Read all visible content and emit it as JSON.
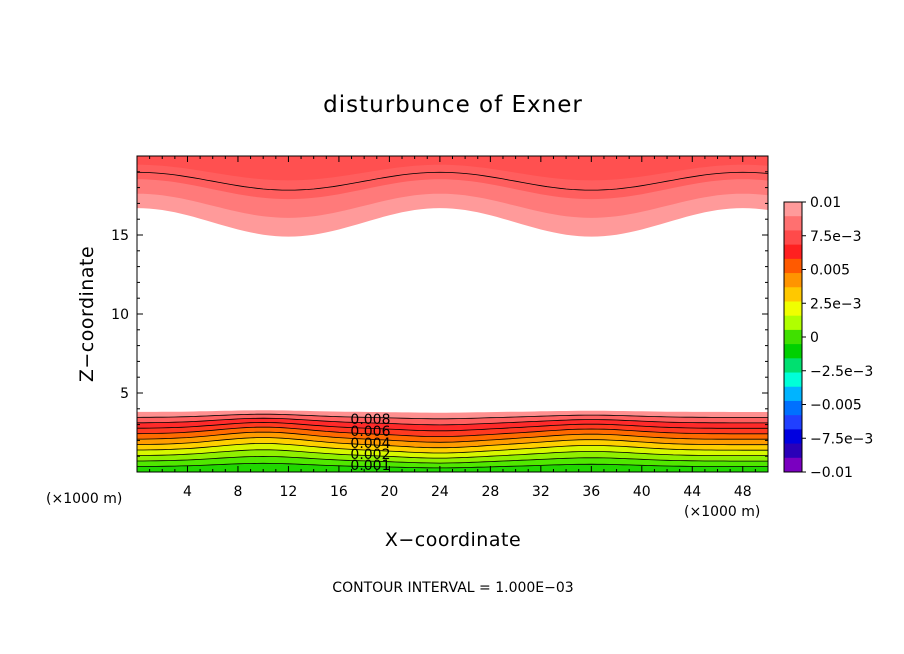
{
  "chart_data": {
    "type": "contour",
    "title": "disturbunce of Exner",
    "xlabel": "X−coordinate",
    "ylabel": "Z−coordinate",
    "x_unit_label": "(×1000 m)",
    "y_unit_label": "(×1000 m)",
    "xlim": [
      0,
      50
    ],
    "ylim": [
      0,
      20
    ],
    "x_ticks": [
      4,
      8,
      12,
      16,
      20,
      24,
      28,
      32,
      36,
      40,
      44,
      48
    ],
    "y_ticks": [
      5,
      10,
      15
    ],
    "contour_interval_text": "CONTOUR INTERVAL = 1.000E−03",
    "colorbar": {
      "tick_labels": [
        "0.01",
        "7.5e−3",
        "0.005",
        "2.5e−3",
        "0",
        "−2.5e−3",
        "−0.005",
        "−7.5e−3",
        "−0.01"
      ],
      "levels": [
        0.01,
        0.0075,
        0.005,
        0.0025,
        0,
        -0.0025,
        -0.005,
        -0.0075,
        -0.01
      ],
      "colors_top_to_bottom": [
        "#ff9a9a",
        "#ff7070",
        "#ff4a4a",
        "#ff2020",
        "#ff5a00",
        "#ff9400",
        "#ffc800",
        "#f0ff00",
        "#b0ff00",
        "#40e000",
        "#00d000",
        "#00e070",
        "#00ffd8",
        "#00b4ff",
        "#0070ff",
        "#2040ff",
        "#0000e0",
        "#2a00b8",
        "#7a00c0"
      ]
    },
    "contour_labels": [
      "0.008",
      "0.006",
      "0.004",
      "0.002",
      "0.001"
    ],
    "lower_layer": {
      "description_levels": [
        0.001,
        0.002,
        0.003,
        0.004,
        0.005,
        0.006,
        0.007,
        0.008,
        0.009,
        0.01
      ],
      "top_height_z": 3.8
    },
    "upper_layer": {
      "wave_x_peaks": [
        10,
        36
      ],
      "wave_x_trough": 24,
      "bottom_height_z": 15.8
    }
  },
  "colors": {
    "lower_bands": [
      "#20d800",
      "#50e800",
      "#90f000",
      "#d8f800",
      "#ffd000",
      "#ff9c00",
      "#ff6a00",
      "#ff3a20",
      "#ff2a2a",
      "#ff6060",
      "#ff9090"
    ],
    "upper_bands": [
      "#ff9a9a",
      "#ff7a7a",
      "#ff5e5e",
      "#ff5050"
    ]
  }
}
